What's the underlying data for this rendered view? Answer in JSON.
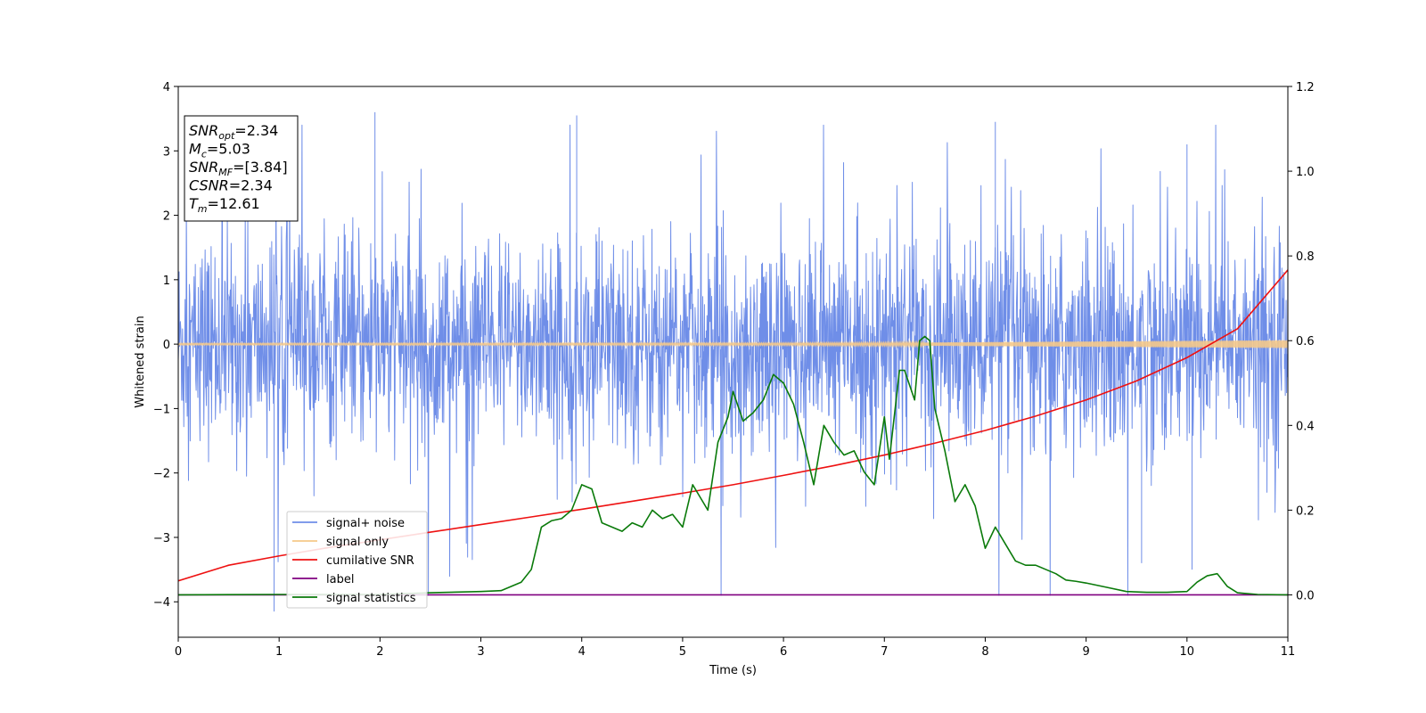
{
  "chart_data": {
    "type": "line",
    "xlabel": "Time (s)",
    "ylabel": "Whitened strain",
    "xlim": [
      0,
      11
    ],
    "ylim_left": [
      -4.55,
      4
    ],
    "ylim_right": [
      -0.1,
      1.2
    ],
    "xticks": [
      "0",
      "1",
      "2",
      "3",
      "4",
      "5",
      "6",
      "7",
      "8",
      "9",
      "10",
      "11"
    ],
    "yticks_left": [
      "−4",
      "−3",
      "−2",
      "−1",
      "0",
      "1",
      "2",
      "3",
      "4"
    ],
    "yticks_right": [
      "0.0",
      "0.2",
      "0.4",
      "0.6",
      "0.8",
      "1.0",
      "1.2"
    ],
    "grid": false,
    "legend_position": "lower-left",
    "colors": {
      "signal_noise": "#6f8ee8",
      "signal_only": "#f5c98a",
      "cumulative_snr": "#ee1111",
      "label": "#800080",
      "signal_statistics": "#0a7a0a"
    },
    "annotation": [
      {
        "base": "SNR",
        "sub": "opt",
        "value": "=2.34"
      },
      {
        "base": "M",
        "sub": "c",
        "value": "=5.03"
      },
      {
        "base": "SNR",
        "sub": "MF",
        "value": "=[3.84]"
      },
      {
        "base": "CSNR",
        "sub": "",
        "value": "=2.34"
      },
      {
        "base": "T",
        "sub": "m",
        "value": "=12.61"
      }
    ],
    "series": [
      {
        "name": "signal+ noise",
        "axis": "left",
        "envelope": {
          "x": [
            0,
            11
          ],
          "upper": [
            1.3,
            1.4
          ],
          "lower": [
            -1.3,
            -1.4
          ]
        },
        "notable_peaks": [
          {
            "x": 0.95,
            "y": -4.15
          },
          {
            "x": 1.95,
            "y": 3.6
          },
          {
            "x": 3.95,
            "y": 3.55
          },
          {
            "x": 8.1,
            "y": 3.45
          },
          {
            "x": 10.0,
            "y": 3.1
          },
          {
            "x": 10.05,
            "y": -3.5
          },
          {
            "x": 9.55,
            "y": -3.4
          }
        ]
      },
      {
        "name": "signal only",
        "axis": "left",
        "x": [
          0,
          6,
          7,
          8,
          9,
          10,
          11
        ],
        "amplitude": [
          0.01,
          0.015,
          0.02,
          0.03,
          0.04,
          0.05,
          0.06
        ]
      },
      {
        "name": "cumilative SNR",
        "axis": "right",
        "x": [
          0,
          0.5,
          1,
          1.5,
          2,
          2.5,
          3,
          3.5,
          4,
          4.5,
          5,
          5.5,
          6,
          6.5,
          7,
          7.5,
          8,
          8.5,
          9,
          9.5,
          10,
          10.5,
          11
        ],
        "y": [
          0.033,
          0.07,
          0.092,
          0.112,
          0.13,
          0.148,
          0.166,
          0.184,
          0.202,
          0.221,
          0.24,
          0.26,
          0.282,
          0.305,
          0.33,
          0.358,
          0.388,
          0.422,
          0.46,
          0.505,
          0.56,
          0.628,
          0.767
        ]
      },
      {
        "name": "label",
        "axis": "right",
        "x": [
          0,
          11
        ],
        "y": [
          0.0,
          0.0
        ]
      },
      {
        "name": "signal statistics",
        "axis": "right",
        "x": [
          0,
          1,
          2,
          2.5,
          3,
          3.2,
          3.4,
          3.5,
          3.6,
          3.7,
          3.8,
          3.9,
          4.0,
          4.1,
          4.2,
          4.3,
          4.4,
          4.5,
          4.6,
          4.7,
          4.8,
          4.9,
          5.0,
          5.1,
          5.2,
          5.25,
          5.35,
          5.45,
          5.5,
          5.6,
          5.7,
          5.8,
          5.9,
          6.0,
          6.1,
          6.2,
          6.3,
          6.4,
          6.5,
          6.6,
          6.7,
          6.8,
          6.9,
          7.0,
          7.05,
          7.15,
          7.2,
          7.3,
          7.35,
          7.4,
          7.45,
          7.5,
          7.6,
          7.7,
          7.8,
          7.9,
          8.0,
          8.1,
          8.2,
          8.3,
          8.4,
          8.5,
          8.6,
          8.7,
          8.8,
          8.9,
          9.0,
          9.2,
          9.4,
          9.6,
          9.8,
          10.0,
          10.1,
          10.2,
          10.3,
          10.4,
          10.5,
          10.7,
          11
        ],
        "y": [
          0.0,
          0.001,
          0.001,
          0.005,
          0.008,
          0.01,
          0.03,
          0.06,
          0.16,
          0.175,
          0.18,
          0.2,
          0.26,
          0.25,
          0.17,
          0.16,
          0.15,
          0.17,
          0.16,
          0.2,
          0.18,
          0.19,
          0.16,
          0.26,
          0.22,
          0.2,
          0.36,
          0.42,
          0.48,
          0.41,
          0.43,
          0.46,
          0.52,
          0.5,
          0.45,
          0.36,
          0.26,
          0.4,
          0.36,
          0.33,
          0.34,
          0.29,
          0.26,
          0.42,
          0.32,
          0.53,
          0.53,
          0.46,
          0.6,
          0.61,
          0.6,
          0.44,
          0.34,
          0.22,
          0.26,
          0.21,
          0.11,
          0.16,
          0.12,
          0.08,
          0.07,
          0.07,
          0.06,
          0.05,
          0.035,
          0.032,
          0.028,
          0.018,
          0.008,
          0.006,
          0.006,
          0.008,
          0.03,
          0.045,
          0.05,
          0.02,
          0.005,
          0.001,
          0.0
        ]
      }
    ]
  }
}
